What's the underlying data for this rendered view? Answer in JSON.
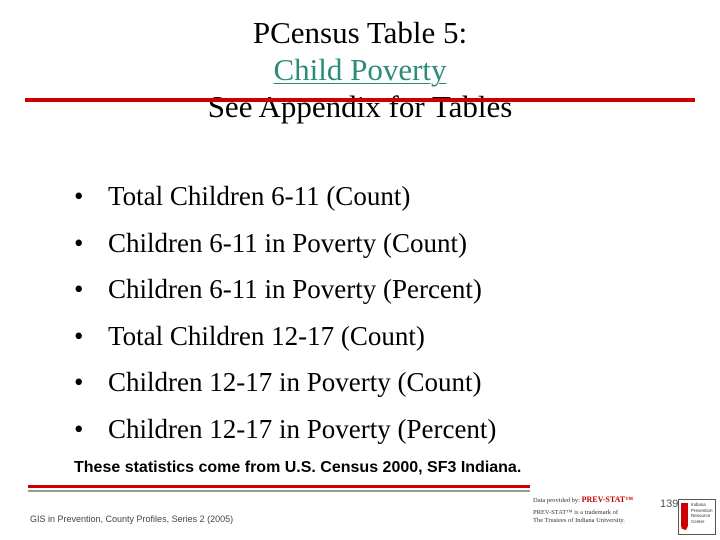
{
  "slide": {
    "title_line1": "PCensus Table 5:",
    "title_link": "Child Poverty",
    "title_line3": "See Appendix for Tables",
    "bullet_char": "•",
    "bullets": [
      "Total Children 6-11 (Count)",
      "Children 6-11 in Poverty (Count)",
      "Children 6-11 in Poverty (Percent)",
      "Total Children 12-17 (Count)",
      "Children 12-17 in Poverty (Count)",
      "Children 12-17 in Poverty (Percent)"
    ],
    "source_note": "These statistics come from U.S. Census 2000, SF3 Indiana."
  },
  "footer": {
    "left_text": "GIS in Prevention, County Profiles, Series 2 (2005)",
    "credit_prefix": "Data provided by: ",
    "credit_brand": "PREV-STAT™",
    "credit_line2": "PREV-STAT™ is a trademark of",
    "credit_line3": "The Trustees of Indiana University.",
    "page_number": "139",
    "logo_text": [
      "Indiana",
      "Prevention",
      "Resource",
      "Center"
    ]
  },
  "colors": {
    "accent_red": "#cc0000",
    "link_teal": "#2e8b7a"
  }
}
